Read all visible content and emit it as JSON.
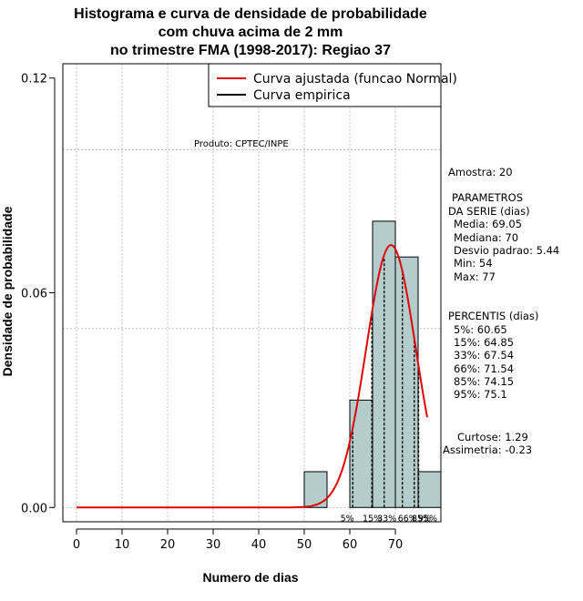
{
  "chart_data": {
    "type": "histogram",
    "title_lines": [
      "Histograma e curva de densidade de probabilidade",
      "com chuva acima de 2 mm",
      "no trimestre FMA (1998-2017): Regiao 37"
    ],
    "xlabel": "Numero de dias",
    "ylabel": "Densidade de probabilidade",
    "xlim": [
      -3,
      80
    ],
    "ylim": [
      -0.004,
      0.124
    ],
    "x_ticks": [
      0,
      10,
      20,
      30,
      40,
      50,
      60,
      70
    ],
    "y_ticks": [
      0.0,
      0.06,
      0.12
    ],
    "y_tick_labels": [
      "0.00",
      "0.06",
      "0.12"
    ],
    "grid_x": [
      0,
      10,
      20,
      30,
      40,
      50,
      60,
      70
    ],
    "grid_y": [
      0.0,
      0.1,
      0.05
    ],
    "bins": [
      {
        "start": 50,
        "end": 55,
        "density": 0.01
      },
      {
        "start": 55,
        "end": 60,
        "density": 0.0
      },
      {
        "start": 60,
        "end": 65,
        "density": 0.03
      },
      {
        "start": 65,
        "end": 70,
        "density": 0.08
      },
      {
        "start": 70,
        "end": 75,
        "density": 0.07
      },
      {
        "start": 75,
        "end": 80,
        "density": 0.01
      }
    ],
    "normal_fit": {
      "name": "Curva ajustada (funcao Normal)",
      "mean": 69.05,
      "sd": 5.44,
      "x_range": [
        0,
        77
      ],
      "color": "#e00000"
    },
    "empirical": {
      "name": "Curva empirica",
      "color": "#000000"
    },
    "bar_color": "#b4cccc",
    "percentiles": [
      {
        "label": "5%",
        "value": 60.65
      },
      {
        "label": "15%",
        "value": 64.85
      },
      {
        "label": "33%",
        "value": 67.54
      },
      {
        "label": "66%",
        "value": 71.54
      },
      {
        "label": "85%",
        "value": 74.15
      },
      {
        "label": "95%",
        "value": 75.1
      }
    ],
    "percentile_marks": [
      60.65,
      64.85,
      67.54,
      71.54,
      74.15,
      75.1
    ],
    "percentile_axis_labels": [
      "5%",
      "15%",
      "33%",
      "66%",
      "85%",
      "95%"
    ],
    "legend_location": "top-right",
    "annotation": "Produto: CPTEC/INPE"
  },
  "stats": {
    "sample": "Amostra: 20",
    "params_header_1": "PARAMETROS",
    "params_header_2": "DA SERIE (dias)",
    "media": "Media: 69.05",
    "mediana": "Mediana: 70",
    "desvio": "Desvio padrao: 5.44",
    "min": "Min: 54",
    "max": "Max: 77",
    "percentis_header": "PERCENTIS (dias)",
    "p5": "5%: 60.65",
    "p15": "15%: 64.85",
    "p33": "33%: 67.54",
    "p66": "66%: 71.54",
    "p85": "85%: 74.15",
    "p95": "95%: 75.1",
    "curtose": "Curtose: 1.29",
    "assimetria": "Assimetria: -0.23"
  }
}
